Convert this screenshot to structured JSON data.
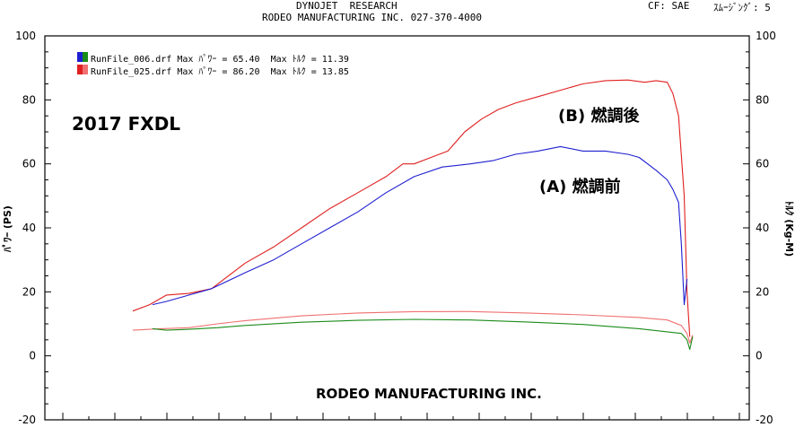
{
  "header": {
    "line1": "DYNOJET  RESEARCH",
    "line2": "RODEO MANUFACTURING INC. 027-370-4000",
    "cf": "CF: SAE",
    "smoothing": "ｽﾑｰｼﾞﾝｸﾞ: 5"
  },
  "legend": [
    {
      "text": "RunFile_006.drf Max ﾊﾟﾜｰ = 65.40  Max ﾄﾙｸ = 11.39",
      "color": "#1f1fd0",
      "color2": "#1a8c1a"
    },
    {
      "text": "RunFile_025.drf Max ﾊﾟﾜｰ = 86.20  Max ﾄﾙｸ = 13.85",
      "color": "#e02020",
      "color2": "#f07070"
    }
  ],
  "annotations": {
    "model": "2017 FXDL",
    "after": "(B) 燃調後",
    "before": "(A) 燃調前",
    "footer": "RODEO MANUFACTURING INC."
  },
  "chart_data": {
    "type": "line",
    "ylabel": "ﾊﾟﾜｰ (PS)",
    "ylabel_right": "ﾄﾙｸ (Kg-M)",
    "ylim": [
      -20,
      100
    ],
    "yticks": [
      -20,
      0,
      20,
      40,
      60,
      80,
      100
    ],
    "grid": false,
    "legend_position": "top-left",
    "series": [
      {
        "role": "power",
        "run": "RunFile_025.drf",
        "color": "#e02020",
        "points": [
          [
            0,
            14
          ],
          [
            0.03,
            16
          ],
          [
            0.06,
            19
          ],
          [
            0.1,
            19.5
          ],
          [
            0.14,
            21
          ],
          [
            0.2,
            29
          ],
          [
            0.25,
            34
          ],
          [
            0.3,
            40
          ],
          [
            0.35,
            46
          ],
          [
            0.4,
            51
          ],
          [
            0.45,
            56
          ],
          [
            0.48,
            60
          ],
          [
            0.5,
            60
          ],
          [
            0.53,
            62
          ],
          [
            0.56,
            64
          ],
          [
            0.59,
            70
          ],
          [
            0.62,
            74
          ],
          [
            0.65,
            77
          ],
          [
            0.68,
            79
          ],
          [
            0.72,
            81
          ],
          [
            0.76,
            83
          ],
          [
            0.8,
            85
          ],
          [
            0.84,
            86
          ],
          [
            0.88,
            86.2
          ],
          [
            0.91,
            85.5
          ],
          [
            0.93,
            86
          ],
          [
            0.95,
            85.5
          ],
          [
            0.96,
            82
          ],
          [
            0.97,
            75
          ],
          [
            0.98,
            50
          ],
          [
            0.985,
            20
          ],
          [
            0.99,
            6
          ]
        ]
      },
      {
        "role": "power",
        "run": "RunFile_006.drf",
        "color": "#1f1fd0",
        "points": [
          [
            0.035,
            16
          ],
          [
            0.06,
            17
          ],
          [
            0.1,
            19
          ],
          [
            0.14,
            21
          ],
          [
            0.2,
            26
          ],
          [
            0.25,
            30
          ],
          [
            0.3,
            35
          ],
          [
            0.35,
            40
          ],
          [
            0.4,
            45
          ],
          [
            0.45,
            51
          ],
          [
            0.5,
            56
          ],
          [
            0.55,
            59
          ],
          [
            0.6,
            60
          ],
          [
            0.64,
            61
          ],
          [
            0.68,
            63
          ],
          [
            0.72,
            64
          ],
          [
            0.76,
            65.4
          ],
          [
            0.8,
            64
          ],
          [
            0.84,
            64
          ],
          [
            0.88,
            63
          ],
          [
            0.9,
            62
          ],
          [
            0.93,
            58
          ],
          [
            0.95,
            55
          ],
          [
            0.96,
            52
          ],
          [
            0.97,
            48
          ],
          [
            0.975,
            35
          ],
          [
            0.98,
            16
          ],
          [
            0.985,
            24
          ]
        ]
      },
      {
        "role": "torque",
        "run": "RunFile_025.drf",
        "color": "#f07070",
        "points": [
          [
            0,
            8
          ],
          [
            0.05,
            8.5
          ],
          [
            0.1,
            8.8
          ],
          [
            0.15,
            10
          ],
          [
            0.2,
            11
          ],
          [
            0.3,
            12.5
          ],
          [
            0.4,
            13.4
          ],
          [
            0.5,
            13.8
          ],
          [
            0.6,
            13.85
          ],
          [
            0.7,
            13.4
          ],
          [
            0.8,
            12.8
          ],
          [
            0.9,
            12
          ],
          [
            0.95,
            11.2
          ],
          [
            0.975,
            9.5
          ],
          [
            0.985,
            7
          ],
          [
            0.99,
            4
          ],
          [
            0.995,
            6.5
          ]
        ]
      },
      {
        "role": "torque",
        "run": "RunFile_006.drf",
        "color": "#1a8c1a",
        "points": [
          [
            0.035,
            8.5
          ],
          [
            0.06,
            8
          ],
          [
            0.1,
            8.3
          ],
          [
            0.15,
            8.8
          ],
          [
            0.2,
            9.5
          ],
          [
            0.3,
            10.5
          ],
          [
            0.4,
            11.1
          ],
          [
            0.5,
            11.39
          ],
          [
            0.6,
            11.2
          ],
          [
            0.7,
            10.6
          ],
          [
            0.8,
            9.8
          ],
          [
            0.9,
            8.5
          ],
          [
            0.95,
            7.5
          ],
          [
            0.975,
            7
          ],
          [
            0.985,
            5
          ],
          [
            0.99,
            2
          ],
          [
            0.995,
            6
          ]
        ]
      }
    ]
  }
}
